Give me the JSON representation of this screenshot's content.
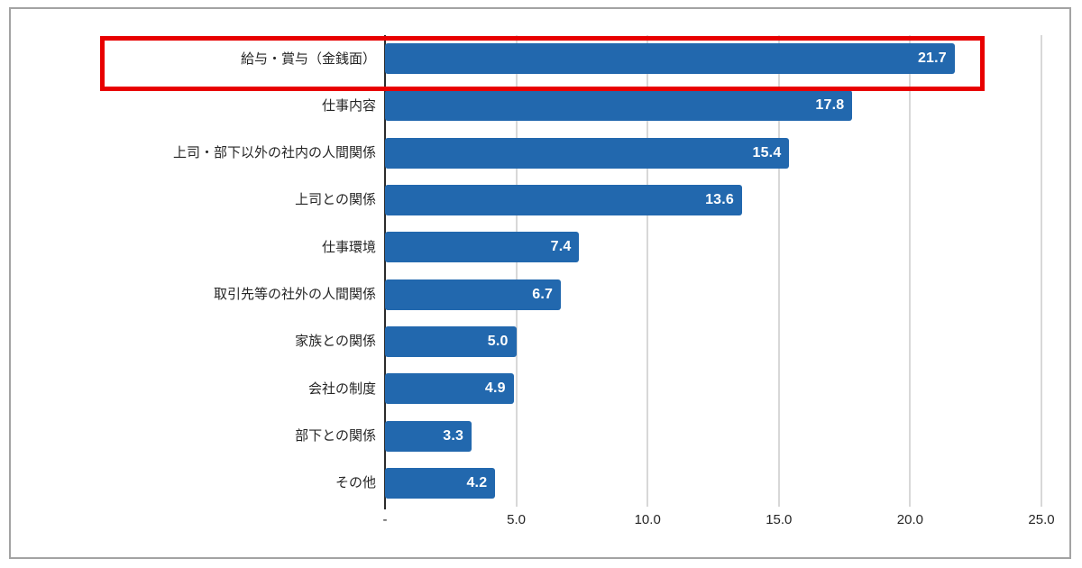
{
  "chart_data": {
    "type": "bar",
    "orientation": "horizontal",
    "title": "",
    "xlabel": "",
    "ylabel": "",
    "categories": [
      "給与・賞与（金銭面）",
      "仕事内容",
      "上司・部下以外の社内の人間関係",
      "上司との関係",
      "仕事環境",
      "取引先等の社外の人間関係",
      "家族との関係",
      "会社の制度",
      "部下との関係",
      "その他"
    ],
    "values": [
      21.7,
      17.8,
      15.4,
      13.6,
      7.4,
      6.7,
      5.0,
      4.9,
      3.3,
      4.2
    ],
    "value_labels": [
      "21.7",
      "17.8",
      "15.4",
      "13.6",
      "7.4",
      "6.7",
      "5.0",
      "4.9",
      "3.3",
      "4.2"
    ],
    "xlim": [
      0,
      25
    ],
    "x_ticks": [
      {
        "value": 0,
        "label": "-"
      },
      {
        "value": 5,
        "label": "5.0"
      },
      {
        "value": 10,
        "label": "10.0"
      },
      {
        "value": 15,
        "label": "15.0"
      },
      {
        "value": 20,
        "label": "20.0"
      },
      {
        "value": 25,
        "label": "25.0"
      }
    ],
    "grid": "vertical-only",
    "legend": "none",
    "bar_color": "#2268AE",
    "value_label_color": "#FFFFFF",
    "gridline_color": "#D8D8D8",
    "axis_color": "#2B2B2B",
    "frame_color": "#A3A3A3",
    "highlight": {
      "index": 0,
      "border_color": "#E80000"
    }
  }
}
